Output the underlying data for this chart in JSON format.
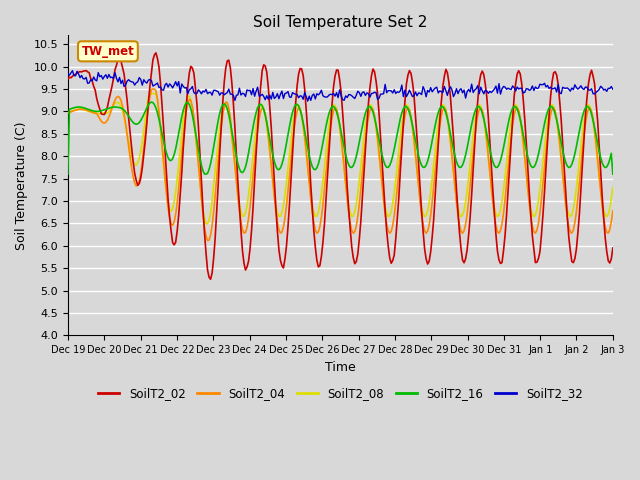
{
  "title": "Soil Temperature Set 2",
  "xlabel": "Time",
  "ylabel": "Soil Temperature (C)",
  "ylim": [
    4.0,
    10.7
  ],
  "yticks": [
    4.0,
    4.5,
    5.0,
    5.5,
    6.0,
    6.5,
    7.0,
    7.5,
    8.0,
    8.5,
    9.0,
    9.5,
    10.0,
    10.5
  ],
  "background_color": "#d8d8d8",
  "plot_bg_color": "#d8d8d8",
  "grid_color": "#ffffff",
  "series_colors": {
    "SoilT2_02": "#cc0000",
    "SoilT2_04": "#ff8800",
    "SoilT2_08": "#dddd00",
    "SoilT2_16": "#00bb00",
    "SoilT2_32": "#0000cc"
  },
  "annotation_text": "TW_met",
  "annotation_box_color": "#ffffcc",
  "annotation_border_color": "#cc8800",
  "x_tick_labels": [
    "Dec 19",
    "Dec 20",
    "Dec 21",
    "Dec 22",
    "Dec 23",
    "Dec 24",
    "Dec 25",
    "Dec 26",
    "Dec 27",
    "Dec 28",
    "Dec 29",
    "Dec 30",
    "Dec 31",
    "Jan 1",
    "Jan 2",
    "Jan 3"
  ]
}
